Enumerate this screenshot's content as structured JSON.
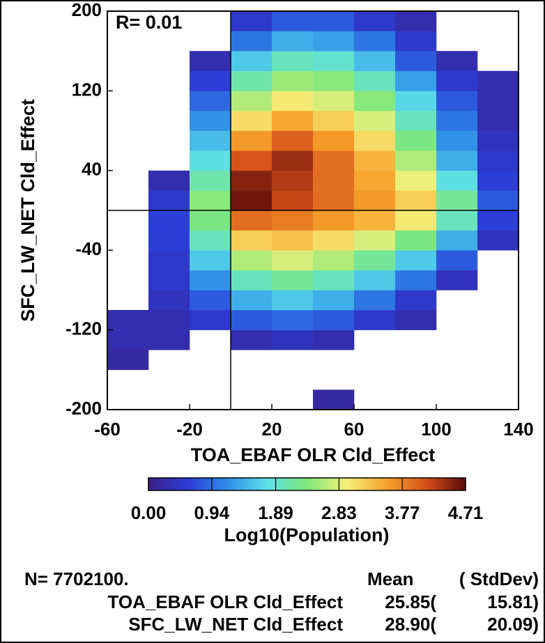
{
  "chart_data": {
    "type": "heatmap2d",
    "x_label": "TOA_EBAF OLR Cld_Effect",
    "y_label": "SFC_LW_NET Cld_Effect",
    "annotation": "R= 0.01",
    "xlim": [
      -60,
      140
    ],
    "ylim": [
      -200,
      200
    ],
    "xticks": [
      -60,
      -20,
      20,
      60,
      100,
      140
    ],
    "yticks": [
      -200,
      -120,
      -40,
      40,
      120,
      200
    ],
    "vline": 0,
    "hline": 0,
    "x_bins": [
      -60,
      -40,
      -20,
      0,
      20,
      40,
      60,
      80,
      100,
      120,
      140
    ],
    "y_bins": [
      -200,
      -180,
      -160,
      -140,
      -120,
      -100,
      -80,
      -60,
      -40,
      -20,
      0,
      20,
      40,
      60,
      80,
      100,
      120,
      140,
      160,
      180,
      200
    ],
    "z": [
      [
        null,
        null,
        null,
        null,
        null,
        0.2,
        null,
        null,
        null,
        null
      ],
      [
        null,
        null,
        null,
        null,
        null,
        null,
        null,
        null,
        null,
        null
      ],
      [
        0.2,
        null,
        null,
        null,
        null,
        null,
        null,
        null,
        null,
        null
      ],
      [
        0.3,
        0.3,
        null,
        0.3,
        0.4,
        0.3,
        null,
        null,
        null,
        null
      ],
      [
        0.3,
        0.3,
        0.5,
        0.8,
        0.9,
        0.8,
        0.5,
        0.3,
        null,
        null
      ],
      [
        null,
        0.4,
        0.8,
        1.4,
        1.6,
        1.4,
        1.0,
        0.5,
        null,
        null
      ],
      [
        null,
        0.5,
        1.2,
        2.0,
        2.2,
        2.0,
        1.6,
        1.0,
        0.4,
        null
      ],
      [
        null,
        0.5,
        1.6,
        2.6,
        2.8,
        2.6,
        2.2,
        1.6,
        0.8,
        null
      ],
      [
        null,
        0.6,
        2.0,
        3.2,
        3.3,
        3.1,
        2.8,
        2.3,
        1.4,
        0.4
      ],
      [
        null,
        0.6,
        2.3,
        3.9,
        3.8,
        3.6,
        3.4,
        3.0,
        2.0,
        0.6
      ],
      [
        null,
        0.5,
        2.4,
        4.6,
        4.2,
        3.9,
        3.6,
        3.2,
        2.2,
        0.8
      ],
      [
        null,
        0.3,
        2.1,
        4.5,
        4.3,
        3.9,
        3.5,
        2.9,
        1.8,
        0.6
      ],
      [
        null,
        null,
        1.8,
        4.1,
        4.4,
        3.9,
        3.4,
        2.6,
        1.4,
        0.5
      ],
      [
        null,
        null,
        1.5,
        3.6,
        4.0,
        3.6,
        3.1,
        2.3,
        1.2,
        0.4
      ],
      [
        null,
        null,
        1.2,
        3.1,
        3.5,
        3.2,
        2.8,
        2.0,
        1.0,
        0.3
      ],
      [
        null,
        null,
        0.9,
        2.6,
        3.0,
        2.8,
        2.4,
        1.7,
        0.8,
        0.3
      ],
      [
        null,
        null,
        0.6,
        2.1,
        2.5,
        2.4,
        2.0,
        1.3,
        0.5,
        0.3
      ],
      [
        null,
        null,
        0.3,
        1.6,
        2.0,
        1.9,
        1.5,
        0.8,
        0.3,
        null
      ],
      [
        null,
        null,
        null,
        1.0,
        1.4,
        1.3,
        1.0,
        0.5,
        null,
        null
      ],
      [
        null,
        null,
        null,
        0.5,
        0.8,
        0.8,
        0.5,
        0.3,
        null,
        null
      ]
    ],
    "colormap": [
      "#3b1f86",
      "#2c3cd6",
      "#2f8fe8",
      "#5ce0e8",
      "#7ee87a",
      "#f5f07a",
      "#f7a22c",
      "#d6501a",
      "#5a0a0a"
    ],
    "clim": [
      0,
      4.71
    ],
    "cticks": [
      {
        "value": 0,
        "label": "0.00"
      },
      0.94,
      1.89,
      2.83,
      3.77,
      4.71
    ],
    "colorbar_label": "Log10(Population)",
    "stats": {
      "n": "N= 7702100.",
      "mean_header": "Mean",
      "std_header": "( StdDev)",
      "rows": [
        {
          "name": "TOA_EBAF OLR Cld_Effect",
          "mean": "25.85(",
          "std": "15.81)"
        },
        {
          "name": "SFC_LW_NET Cld_Effect",
          "mean": "28.90(",
          "std": "20.09)"
        }
      ]
    }
  }
}
